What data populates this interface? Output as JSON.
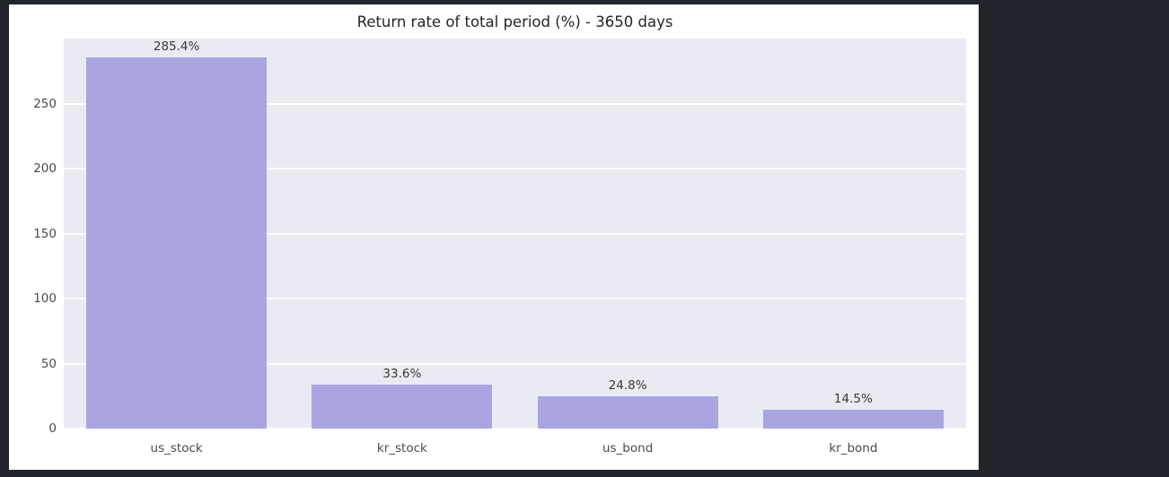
{
  "colors": {
    "page_bg": "#22262c",
    "figure_bg": "#ffffff",
    "plot_bg": "#eaeaf2",
    "grid": "#ffffff",
    "bar": "#a29ede",
    "title_text": "#262626",
    "tick_text": "#4a4a4a",
    "label_text": "#383838"
  },
  "chart_data": {
    "type": "bar",
    "title": "Return rate of total period (%) - 3650 days",
    "categories": [
      "us_stock",
      "kr_stock",
      "us_bond",
      "kr_bond"
    ],
    "values": [
      285.4,
      33.6,
      24.8,
      14.5
    ],
    "value_labels": [
      "285.4%",
      "33.6%",
      "24.8%",
      "14.5%"
    ],
    "xlabel": "",
    "ylabel": "",
    "yticks": [
      0,
      50,
      100,
      150,
      200,
      250
    ],
    "ylim": [
      0,
      300
    ],
    "grid": true,
    "legend": false,
    "orientation": "vertical"
  }
}
